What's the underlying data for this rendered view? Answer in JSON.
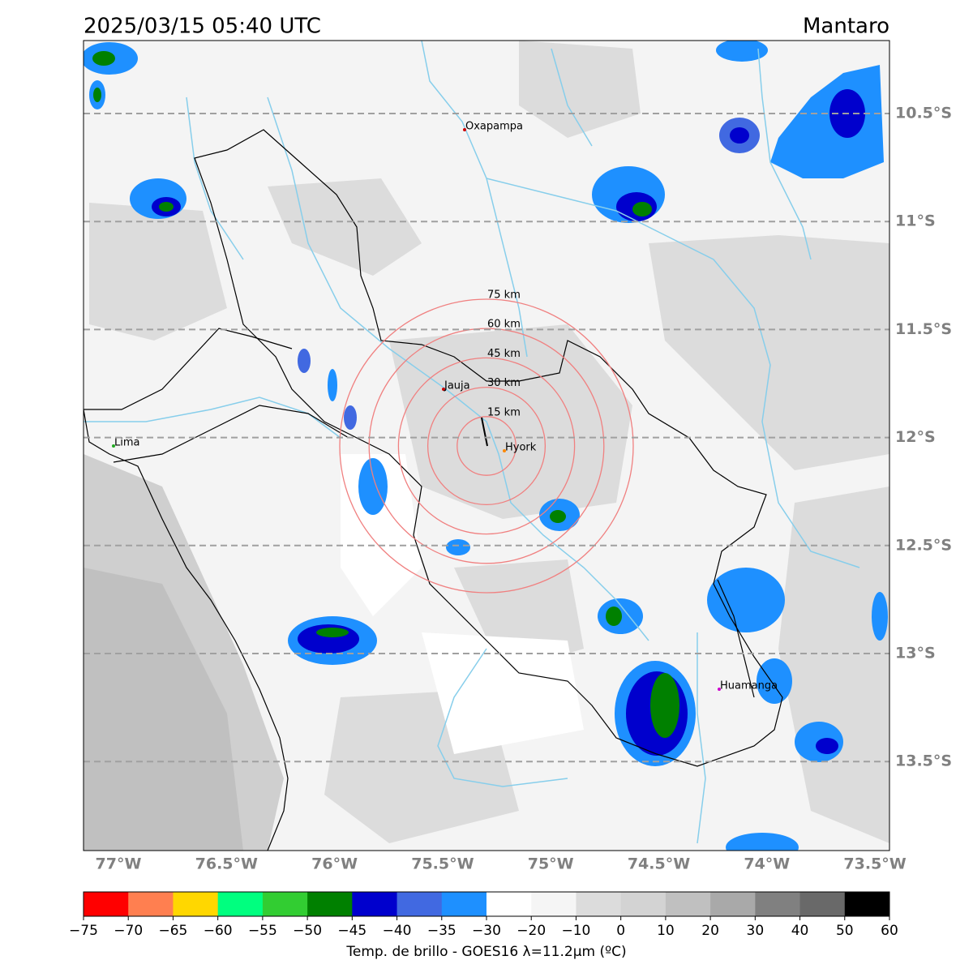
{
  "header": {
    "title": "2025/03/15 05:40 UTC",
    "location": "Mantaro"
  },
  "map": {
    "lat_labels": [
      "10.5°S",
      "11°S",
      "11.5°S",
      "12°S",
      "12.5°S",
      "13°S",
      "13.5°S"
    ],
    "lon_labels": [
      "77°W",
      "76.5°W",
      "76°W",
      "75.5°W",
      "75°W",
      "74.5°W",
      "74°W",
      "73.5°W"
    ],
    "rings": [
      "15 km",
      "30 km",
      "45 km",
      "60 km",
      "75 km"
    ],
    "places": [
      "Oxapampa",
      "Jauja",
      "Hyork",
      "Lima",
      "Huamanga"
    ]
  },
  "colorbar": {
    "label": "Temp. de brillo - GOES16 λ=11.2μm (ºC)",
    "ticks": [
      {
        "value": -75,
        "label": "−75"
      },
      {
        "value": -70,
        "label": "−70"
      },
      {
        "value": -65,
        "label": "−65"
      },
      {
        "value": -60,
        "label": "−60"
      },
      {
        "value": -55,
        "label": "−55"
      },
      {
        "value": -50,
        "label": "−50"
      },
      {
        "value": -45,
        "label": "−45"
      },
      {
        "value": -40,
        "label": "−40"
      },
      {
        "value": -35,
        "label": "−35"
      },
      {
        "value": -30,
        "label": "−30"
      },
      {
        "value": -20,
        "label": "−20"
      },
      {
        "value": -10,
        "label": "−10"
      },
      0,
      10,
      20,
      30,
      40,
      50,
      60
    ],
    "colors": [
      "#ff0000",
      "#ff7f50",
      "#ffd700",
      "#00ff7f",
      "#32cd32",
      "#008000",
      "#0000cd",
      "#4169e1",
      "#1e90ff",
      "#ffffff",
      "#f5f5f5",
      "#dcdcdc",
      "#d3d3d3",
      "#c0c0c0",
      "#a9a9a9",
      "#808080",
      "#696969",
      "#000000"
    ]
  }
}
